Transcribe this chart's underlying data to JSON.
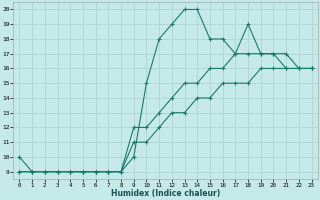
{
  "xlabel": "Humidex (Indice chaleur)",
  "ylabel": "",
  "background_color": "#c5e8e8",
  "grid_color": "#aad0d0",
  "line_color": "#1a7a6a",
  "xlim": [
    -0.5,
    23.5
  ],
  "ylim": [
    8.5,
    20.5
  ],
  "xticks": [
    0,
    1,
    2,
    3,
    4,
    5,
    6,
    7,
    8,
    9,
    10,
    11,
    12,
    13,
    14,
    15,
    16,
    17,
    18,
    19,
    20,
    21,
    22,
    23
  ],
  "yticks": [
    9,
    10,
    11,
    12,
    13,
    14,
    15,
    16,
    17,
    18,
    19,
    20
  ],
  "line1_x": [
    0,
    1,
    2,
    3,
    4,
    5,
    6,
    7,
    8,
    9,
    10,
    11,
    12,
    13,
    14,
    15,
    16,
    17,
    18,
    19,
    20,
    21,
    22,
    23
  ],
  "line1_y": [
    10,
    9,
    9,
    9,
    9,
    9,
    9,
    9,
    9,
    10,
    15,
    18,
    19,
    20,
    20,
    18,
    18,
    17,
    19,
    17,
    17,
    17,
    16,
    16
  ],
  "line2_x": [
    0,
    1,
    2,
    3,
    4,
    5,
    6,
    7,
    8,
    9,
    10,
    11,
    12,
    13,
    14,
    15,
    16,
    17,
    18,
    19,
    20,
    21,
    22,
    23
  ],
  "line2_y": [
    9,
    9,
    9,
    9,
    9,
    9,
    9,
    9,
    9,
    12,
    12,
    13,
    14,
    15,
    15,
    16,
    16,
    17,
    17,
    17,
    17,
    16,
    16,
    16
  ],
  "line3_x": [
    0,
    1,
    2,
    3,
    4,
    5,
    6,
    7,
    8,
    9,
    10,
    11,
    12,
    13,
    14,
    15,
    16,
    17,
    18,
    19,
    20,
    21,
    22,
    23
  ],
  "line3_y": [
    9,
    9,
    9,
    9,
    9,
    9,
    9,
    9,
    9,
    11,
    11,
    12,
    13,
    13,
    14,
    14,
    15,
    15,
    15,
    16,
    16,
    16,
    16,
    16
  ]
}
